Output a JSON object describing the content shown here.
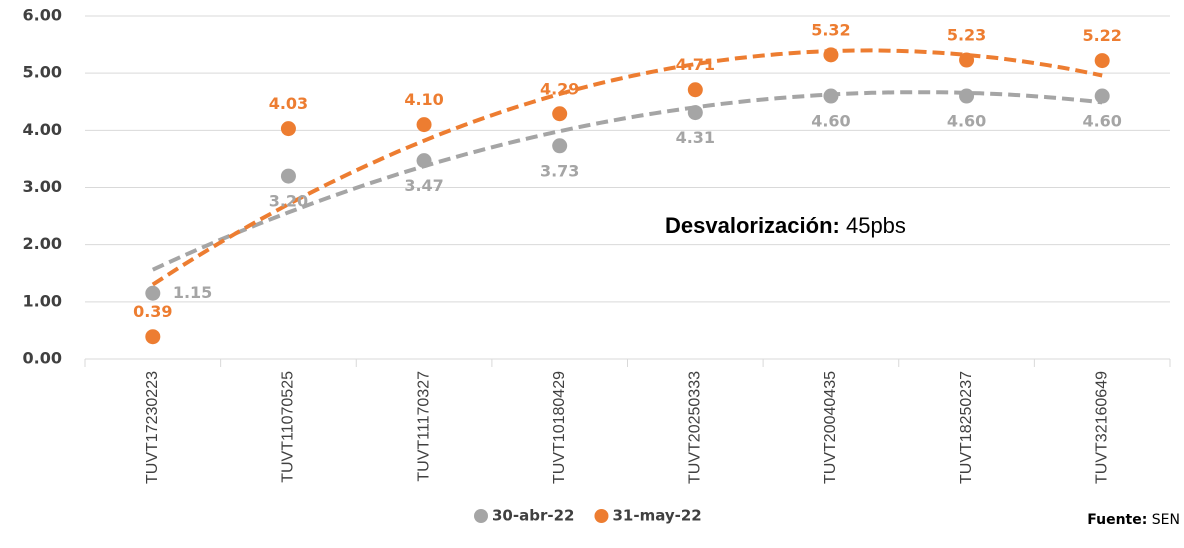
{
  "chart_data": {
    "type": "scatter",
    "categories": [
      "TUVT17230223",
      "TUVT11070525",
      "TUVT11170327",
      "TUVT10180429",
      "TUVT20250333",
      "TUVT20040435",
      "TUVT18250237",
      "TUVT32160649"
    ],
    "series": [
      {
        "name": "30-abr-22",
        "color": "#a5a5a5",
        "values": [
          1.15,
          3.2,
          3.47,
          3.73,
          4.31,
          4.6,
          4.6,
          4.6
        ],
        "value_labels": [
          "1.15",
          "3.20",
          "3.47",
          "3.73",
          "4.31",
          "4.60",
          "4.60",
          "4.60"
        ]
      },
      {
        "name": "31-may-22",
        "color": "#ed7d31",
        "values": [
          0.39,
          4.03,
          4.1,
          4.29,
          4.71,
          5.32,
          5.23,
          5.22
        ],
        "value_labels": [
          "0.39",
          "4.03",
          "4.10",
          "4.29",
          "4.71",
          "5.32",
          "5.23",
          "5.22"
        ]
      }
    ],
    "trendline": "polynomial",
    "ylim": [
      0,
      6
    ],
    "yticks": [
      {
        "value": 0,
        "label": "0.00"
      },
      {
        "value": 1,
        "label": "1.00"
      },
      {
        "value": 2,
        "label": "2.00"
      },
      {
        "value": 3,
        "label": "3.00"
      },
      {
        "value": 4,
        "label": "4.00"
      },
      {
        "value": 5,
        "label": "5.00"
      },
      {
        "value": 6,
        "label": "6.00"
      }
    ],
    "grid": true,
    "annotation": {
      "bold": "Desvalorización:",
      "text": "45pbs"
    },
    "source": {
      "bold": "Fuente:",
      "text": "SEN"
    }
  }
}
